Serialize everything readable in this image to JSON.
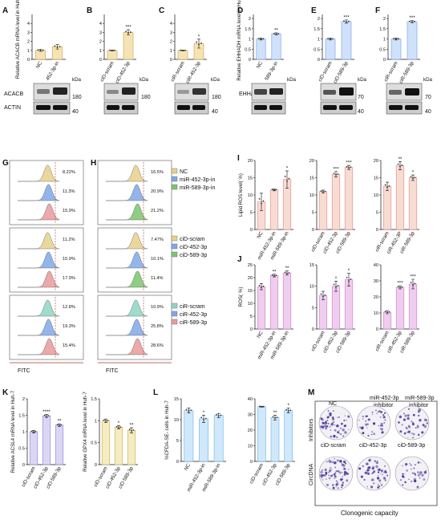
{
  "legend_G": [],
  "legend_H_top": [
    {
      "label": "NC",
      "color": "#e9d08a"
    },
    {
      "label": "miR-452-3p-in",
      "color": "#7fa8e8"
    },
    {
      "label": "miR-589-3p-in",
      "color": "#7cc46e"
    }
  ],
  "legend_H_mid": [
    {
      "label": "ciD-scram",
      "color": "#e9d08a"
    },
    {
      "label": "ciD-452-3p",
      "color": "#7fa8e8"
    },
    {
      "label": "ciD-589-3p",
      "color": "#7cc46e"
    }
  ],
  "legend_H_bot": [
    {
      "label": "ciR-scram",
      "color": "#8fd6c2"
    },
    {
      "label": "ciR-452-3p",
      "color": "#7fa8e8"
    },
    {
      "label": "ciR-589-3p",
      "color": "#e89a9a"
    }
  ],
  "flow_G_pcts": [
    [
      "8.22%",
      "11.3%",
      "15.9%"
    ],
    [
      "11.2%",
      "15.9%",
      "17.9%"
    ],
    [
      "12.8%",
      "19.3%",
      "15.4%"
    ]
  ],
  "flow_H_pcts": [
    [
      "16.5%",
      "20.9%",
      "21.2%"
    ],
    [
      "7.47%",
      "10.1%",
      "11.4%"
    ],
    [
      "10.9%",
      "25.8%",
      "28.6%"
    ]
  ],
  "fitc_label": "FITC",
  "wb": {
    "kda": "kDa",
    "acacb": "ACACB",
    "actin": "ACTIN",
    "ehhadh": "EHHADH",
    "m180": "180",
    "m40": "40",
    "m70": "70"
  },
  "captions": {
    "clonogenic": "Clonogenic capacity",
    "inhibitors": "Inhibitors",
    "circdna": "CircDNA",
    "nc": "NC",
    "mir452": "miR-452-3p",
    "mir589": "miR-589-3p",
    "inhibitor": "inhibitor",
    "cid_scram": "ciD-scram",
    "cid452": "ciD-452-3p",
    "cid589": "ciD-589-3p"
  },
  "panel_labels": [
    "A",
    "B",
    "C",
    "D",
    "E",
    "F",
    "G",
    "H",
    "I",
    "J",
    "K",
    "L",
    "M"
  ],
  "chart_data": [
    {
      "id": "A",
      "type": "bar",
      "ylabel": "Relative ACACB mRNA level in Huh-7",
      "categories": [
        "NC",
        "452-3p-in"
      ],
      "values": [
        1.0,
        1.4
      ],
      "errors": [
        0.1,
        0.25
      ],
      "ylim": [
        0,
        5
      ],
      "yticks": [
        0,
        1,
        2,
        3,
        4
      ],
      "color": "#f6e3b4",
      "stroke": "#c9a24b",
      "sig": [
        "",
        ""
      ]
    },
    {
      "id": "B",
      "type": "bar",
      "ylabel": "",
      "categories": [
        "ciD-scram",
        "ciD-452-3p"
      ],
      "values": [
        1.0,
        3.0
      ],
      "errors": [
        0.05,
        0.3
      ],
      "ylim": [
        0,
        5
      ],
      "yticks": [
        0,
        1,
        2,
        3,
        4
      ],
      "color": "#f6e3b4",
      "stroke": "#c9a24b",
      "sig": [
        "",
        "***"
      ]
    },
    {
      "id": "C",
      "type": "bar",
      "ylabel": "",
      "categories": [
        "ciR-scram",
        "ciR-452-3p"
      ],
      "values": [
        1.0,
        1.75
      ],
      "errors": [
        0.05,
        0.5
      ],
      "ylim": [
        0,
        5
      ],
      "yticks": [
        0,
        1,
        2,
        3,
        4
      ],
      "color": "#f6e3b4",
      "stroke": "#c9a24b",
      "sig": [
        "",
        "*"
      ]
    },
    {
      "id": "D",
      "type": "bar",
      "ylabel": "Relative EHHADH mRNA level in Huh-7",
      "categories": [
        "NC",
        "589-3p-in"
      ],
      "values": [
        1.0,
        1.25
      ],
      "errors": [
        0.05,
        0.05
      ],
      "ylim": [
        0,
        2.2
      ],
      "yticks": [
        0.0,
        0.5,
        1.0,
        1.5,
        2.0
      ],
      "color": "#cfe1fb",
      "stroke": "#6f9de0",
      "sig": [
        "",
        "**"
      ]
    },
    {
      "id": "E",
      "type": "bar",
      "ylabel": "",
      "categories": [
        "ciD-scram",
        "ciD-589-3p"
      ],
      "values": [
        1.0,
        1.85
      ],
      "errors": [
        0.05,
        0.08
      ],
      "ylim": [
        0,
        2.2
      ],
      "yticks": [
        0.0,
        0.5,
        1.0,
        1.5,
        2.0
      ],
      "color": "#cfe1fb",
      "stroke": "#6f9de0",
      "sig": [
        "",
        "***"
      ]
    },
    {
      "id": "F",
      "type": "bar",
      "ylabel": "",
      "categories": [
        "ciR-scram",
        "ciR-589-3p"
      ],
      "values": [
        1.0,
        1.85
      ],
      "errors": [
        0.05,
        0.05
      ],
      "ylim": [
        0,
        2.2
      ],
      "yticks": [
        0.0,
        0.5,
        1.0,
        1.5,
        2.0
      ],
      "color": "#cfe1fb",
      "stroke": "#6f9de0",
      "sig": [
        "",
        "***"
      ]
    },
    {
      "id": "I1",
      "type": "bar",
      "ylabel": "Lipid ROS level( %)",
      "categories": [
        "NC",
        "miR-452-3p-in",
        "miR-589-3p-in"
      ],
      "values": [
        8,
        11.5,
        14.5
      ],
      "errors": [
        2.5,
        0.3,
        2.5
      ],
      "ylim": [
        0,
        20
      ],
      "yticks": [
        0,
        5,
        10,
        15,
        20
      ],
      "color": "#f8dcd4",
      "stroke": "#d98b7a",
      "sig": [
        "",
        "",
        "*"
      ]
    },
    {
      "id": "I2",
      "type": "bar",
      "ylabel": "",
      "categories": [
        "ciD-scram",
        "ciD-452-3p",
        "ciD-589-3p"
      ],
      "values": [
        11,
        16,
        18
      ],
      "errors": [
        0.4,
        0.8,
        0.6
      ],
      "ylim": [
        0,
        20
      ],
      "yticks": [
        0,
        5,
        10,
        15,
        20
      ],
      "color": "#f8dcd4",
      "stroke": "#d98b7a",
      "sig": [
        "",
        "***",
        "***"
      ]
    },
    {
      "id": "I3",
      "type": "bar",
      "ylabel": "",
      "categories": [
        "ciR-scram",
        "ciR-452-3P",
        "ciR-589-3p"
      ],
      "values": [
        12.5,
        18.5,
        15
      ],
      "errors": [
        1.2,
        1.2,
        0.8
      ],
      "ylim": [
        0,
        20
      ],
      "yticks": [
        0,
        5,
        10,
        15,
        20
      ],
      "color": "#f8dcd4",
      "stroke": "#d98b7a",
      "sig": [
        "",
        "**",
        "*"
      ]
    },
    {
      "id": "J1",
      "type": "bar",
      "ylabel": "ROS( %)",
      "categories": [
        "NC",
        "miR-452-3p-in",
        "miR-589-3p-in"
      ],
      "values": [
        16.5,
        20.8,
        21.8
      ],
      "errors": [
        1.2,
        0.5,
        0.8
      ],
      "ylim": [
        0,
        25
      ],
      "yticks": [
        0,
        5,
        10,
        15,
        20,
        25
      ],
      "color": "#f0cdef",
      "stroke": "#c77ac6",
      "sig": [
        "",
        "**",
        "**"
      ]
    },
    {
      "id": "J2",
      "type": "bar",
      "ylabel": "",
      "categories": [
        "ciD-scram",
        "ciD-452-3p",
        "ciD-589-3p"
      ],
      "values": [
        7.8,
        10,
        11.5
      ],
      "errors": [
        1.0,
        1.2,
        1.5
      ],
      "ylim": [
        0,
        15
      ],
      "yticks": [
        0,
        5,
        10,
        15
      ],
      "color": "#f0cdef",
      "stroke": "#c77ac6",
      "sig": [
        "",
        "*",
        "*"
      ]
    },
    {
      "id": "J3",
      "type": "bar",
      "ylabel": "",
      "categories": [
        "ciR-scram",
        "ciR-452-3p",
        "ciR-589-3p"
      ],
      "values": [
        10.5,
        26,
        28
      ],
      "errors": [
        1.0,
        1.0,
        3.0
      ],
      "ylim": [
        0,
        40
      ],
      "yticks": [
        0,
        10,
        20,
        30,
        40
      ],
      "color": "#f0cdef",
      "stroke": "#c77ac6",
      "sig": [
        "",
        "***",
        "***"
      ]
    },
    {
      "id": "K1",
      "type": "bar",
      "ylabel": "Relative ACSL4 mRNA level in Huh-7",
      "categories": [
        "ciD-scram",
        "ciD-452-3p",
        "ciD-589-3p"
      ],
      "values": [
        1.0,
        1.48,
        1.2
      ],
      "errors": [
        0.04,
        0.05,
        0.04
      ],
      "ylim": [
        0,
        2
      ],
      "yticks": [
        0.0,
        0.5,
        1.0,
        1.5,
        2.0
      ],
      "color": "#dcd6f5",
      "stroke": "#8a7fd0",
      "sig": [
        "",
        "****",
        "**"
      ]
    },
    {
      "id": "K2",
      "type": "bar",
      "ylabel": "Relative GPX4 mRNA level in Huh-7",
      "categories": [
        "ciD-scram",
        "ciD-452-3p",
        "ciD-589-3p"
      ],
      "values": [
        1.0,
        0.85,
        0.78
      ],
      "errors": [
        0.04,
        0.04,
        0.06
      ],
      "ylim": [
        0,
        1.5
      ],
      "yticks": [
        0.0,
        0.5,
        1.0,
        1.5
      ],
      "color": "#f5ecc0",
      "stroke": "#c2ad55",
      "sig": [
        "",
        "*",
        "**"
      ]
    },
    {
      "id": "L1",
      "type": "bar",
      "ylabel": "%CFDA-SE- cells in Huh-7",
      "categories": [
        "NC",
        "miR-452-3p-in",
        "miR-589-3p-in"
      ],
      "values": [
        12.2,
        10.2,
        11.0
      ],
      "errors": [
        0.6,
        0.9,
        0.5
      ],
      "ylim": [
        0,
        15
      ],
      "yticks": [
        0,
        5,
        10,
        15
      ],
      "color": "#cfe8fb",
      "stroke": "#6fb0e0",
      "sig": [
        "",
        "*",
        ""
      ]
    },
    {
      "id": "L2",
      "type": "bar",
      "ylabel": "",
      "categories": [
        "ciD-scram",
        "ciD-452-3p",
        "ciD-589-3p"
      ],
      "values": [
        35,
        28,
        32.5
      ],
      "errors": [
        0.3,
        1.5,
        1.5
      ],
      "ylim": [
        0,
        40
      ],
      "yticks": [
        0,
        10,
        20,
        30,
        40
      ],
      "color": "#cfe8fb",
      "stroke": "#6fb0e0",
      "sig": [
        "",
        "**",
        "*"
      ]
    }
  ]
}
